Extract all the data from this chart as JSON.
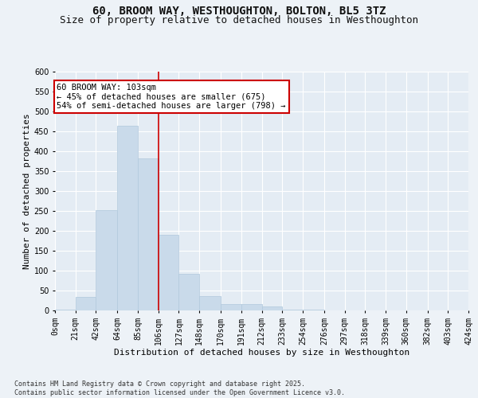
{
  "title_line1": "60, BROOM WAY, WESTHOUGHTON, BOLTON, BL5 3TZ",
  "title_line2": "Size of property relative to detached houses in Westhoughton",
  "xlabel": "Distribution of detached houses by size in Westhoughton",
  "ylabel": "Number of detached properties",
  "bar_color": "#c9daea",
  "bar_edge_color": "#b0c8dc",
  "vline_color": "#cc0000",
  "vline_x": 106,
  "annotation_text": "60 BROOM WAY: 103sqm\n← 45% of detached houses are smaller (675)\n54% of semi-detached houses are larger (798) →",
  "bin_edges": [
    0,
    21,
    42,
    64,
    85,
    106,
    127,
    148,
    170,
    191,
    212,
    233,
    254,
    276,
    297,
    318,
    339,
    360,
    382,
    403,
    424
  ],
  "bar_heights": [
    2,
    35,
    252,
    465,
    382,
    190,
    93,
    36,
    17,
    17,
    10,
    3,
    2,
    1,
    0,
    0,
    0,
    0,
    0,
    0
  ],
  "ylim": [
    0,
    600
  ],
  "yticks": [
    0,
    50,
    100,
    150,
    200,
    250,
    300,
    350,
    400,
    450,
    500,
    550,
    600
  ],
  "footer_text": "Contains HM Land Registry data © Crown copyright and database right 2025.\nContains public sector information licensed under the Open Government Licence v3.0.",
  "bg_color": "#edf2f7",
  "plot_bg_color": "#e4ecf4",
  "grid_color": "#ffffff",
  "title_fontsize": 10,
  "subtitle_fontsize": 9,
  "axis_label_fontsize": 8,
  "tick_fontsize": 7,
  "annotation_fontsize": 7.5,
  "footer_fontsize": 6
}
